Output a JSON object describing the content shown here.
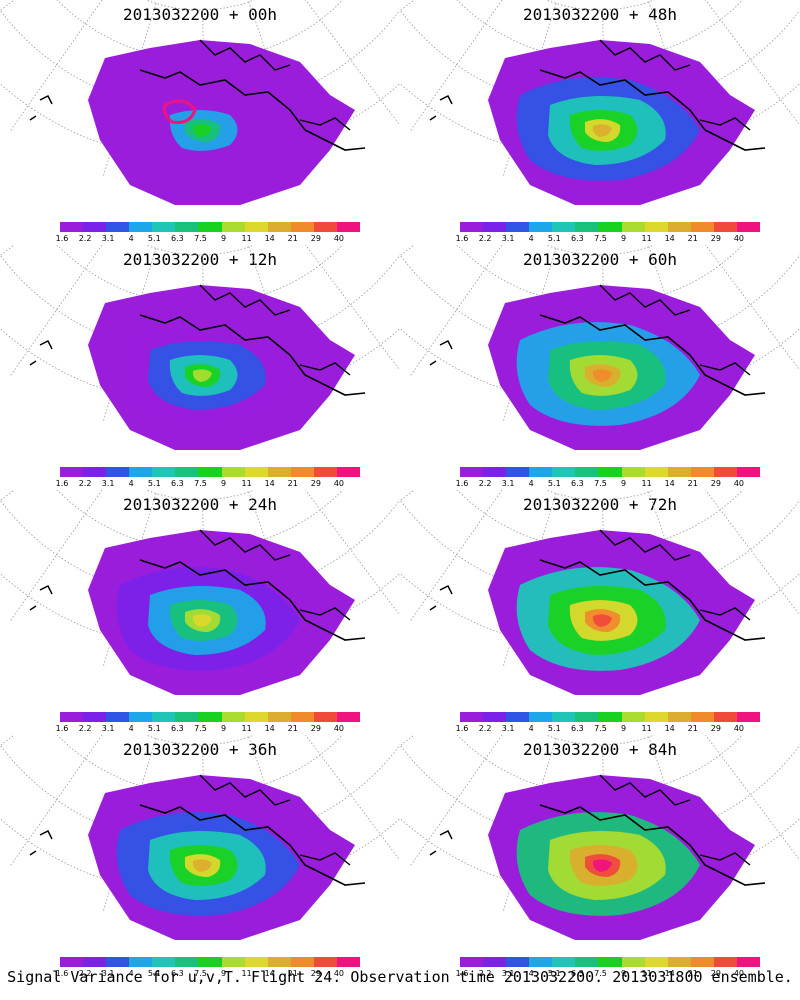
{
  "colorbar": {
    "colors": [
      "#9a1ddc",
      "#7b22e8",
      "#2f54e6",
      "#1ea7e8",
      "#1fc6b8",
      "#18c27a",
      "#19d21f",
      "#a9dc2f",
      "#dcd92c",
      "#dcae2e",
      "#f08a2c",
      "#f04a3b",
      "#f0127e"
    ],
    "labels": [
      "1.6",
      "2.2",
      "3.1",
      "4",
      "5.1",
      "6.3",
      "7.5",
      "9",
      "11",
      "14",
      "21",
      "29",
      "40"
    ]
  },
  "panels": [
    {
      "title": "2013032200 + 00h",
      "level": 0
    },
    {
      "title": "2013032200 + 48h",
      "level": 3
    },
    {
      "title": "2013032200 + 12h",
      "level": 1
    },
    {
      "title": "2013032200 + 60h",
      "level": 4
    },
    {
      "title": "2013032200 + 24h",
      "level": 2
    },
    {
      "title": "2013032200 + 72h",
      "level": 5
    },
    {
      "title": "2013032200 + 36h",
      "level": 3
    },
    {
      "title": "2013032200 + 84h",
      "level": 6
    }
  ],
  "footer": "Signal Variance for u,v,T. Flight 24. Observation time 2013032200. 2013031800 ensemble."
}
